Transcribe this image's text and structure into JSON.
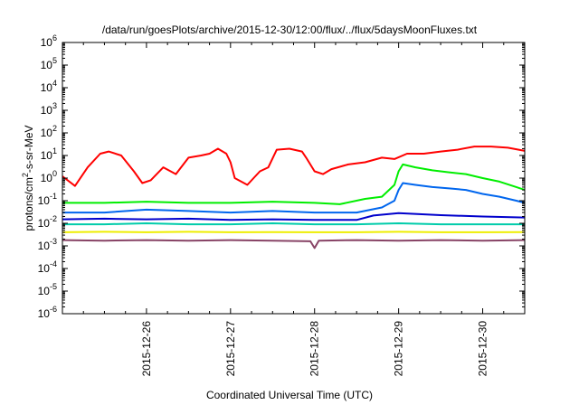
{
  "chart_data": {
    "type": "line",
    "title": "/data/run/goesPlots/archive/2015-12-30/12:00/flux/../flux/5daysMoonFluxes.txt",
    "xlabel": "Coordinated Universal Time (UTC)",
    "ylabel_base": "protons/cm",
    "ylabel_sup": "2",
    "ylabel_rest": "-s-sr-MeV",
    "yscale": "log",
    "ylim_exponents": [
      -6,
      6
    ],
    "ytick_exponents": [
      -6,
      -5,
      -4,
      -3,
      -2,
      -1,
      0,
      1,
      2,
      3,
      4,
      5,
      6
    ],
    "xlim_days": [
      25.0,
      30.5
    ],
    "xticks": [
      {
        "day": 26,
        "label": "2015-12-26"
      },
      {
        "day": 27,
        "label": "2015-12-27"
      },
      {
        "day": 28,
        "label": "2015-12-28"
      },
      {
        "day": 29,
        "label": "2015-12-29"
      },
      {
        "day": 30,
        "label": "2015-12-30"
      }
    ],
    "grid": false,
    "series": [
      {
        "color": "#ff0000",
        "x": [
          25.0,
          25.15,
          25.3,
          25.45,
          25.55,
          25.7,
          25.85,
          25.95,
          26.05,
          26.2,
          26.35,
          26.5,
          26.65,
          26.75,
          26.85,
          26.95,
          27.0,
          27.05,
          27.2,
          27.35,
          27.45,
          27.55,
          27.7,
          27.85,
          27.9,
          28.0,
          28.1,
          28.2,
          28.4,
          28.6,
          28.8,
          28.95,
          29.1,
          29.3,
          29.5,
          29.7,
          29.9,
          30.1,
          30.3,
          30.5
        ],
        "values": [
          1.2,
          0.45,
          3.0,
          12,
          15,
          10,
          2.0,
          0.6,
          0.8,
          3.0,
          1.5,
          8.0,
          10,
          12,
          20,
          12,
          5.0,
          1.0,
          0.5,
          2.0,
          3.0,
          18,
          20,
          15,
          8.0,
          2.0,
          1.5,
          2.5,
          4.0,
          5.0,
          8.0,
          7.0,
          12,
          12,
          15,
          18,
          25,
          25,
          22,
          16
        ]
      },
      {
        "color": "#00ee00",
        "x": [
          25.0,
          25.5,
          26.0,
          26.5,
          27.0,
          27.5,
          28.0,
          28.3,
          28.6,
          28.8,
          28.95,
          29.0,
          29.05,
          29.2,
          29.4,
          29.6,
          29.8,
          30.0,
          30.2,
          30.4,
          30.5
        ],
        "values": [
          0.08,
          0.08,
          0.09,
          0.08,
          0.08,
          0.09,
          0.08,
          0.07,
          0.12,
          0.15,
          0.5,
          2.0,
          4.0,
          3.0,
          2.2,
          1.8,
          1.5,
          1.0,
          0.7,
          0.4,
          0.3
        ]
      },
      {
        "color": "#0066ee",
        "x": [
          25.0,
          25.5,
          26.0,
          26.5,
          27.0,
          27.5,
          28.0,
          28.5,
          28.8,
          28.95,
          29.0,
          29.05,
          29.2,
          29.4,
          29.6,
          29.8,
          30.0,
          30.2,
          30.4,
          30.5
        ],
        "values": [
          0.03,
          0.03,
          0.04,
          0.035,
          0.03,
          0.035,
          0.03,
          0.03,
          0.05,
          0.1,
          0.3,
          0.6,
          0.5,
          0.4,
          0.35,
          0.3,
          0.2,
          0.15,
          0.1,
          0.08
        ]
      },
      {
        "color": "#0000cc",
        "x": [
          25.0,
          25.5,
          26.0,
          26.5,
          27.0,
          27.5,
          28.0,
          28.5,
          28.7,
          29.0,
          29.5,
          30.0,
          30.5
        ],
        "values": [
          0.015,
          0.016,
          0.015,
          0.016,
          0.014,
          0.015,
          0.014,
          0.014,
          0.022,
          0.028,
          0.023,
          0.02,
          0.018
        ]
      },
      {
        "color": "#00ccaa",
        "x": [
          25.0,
          25.5,
          26.0,
          26.5,
          27.0,
          27.5,
          28.0,
          28.5,
          29.0,
          29.5,
          30.0,
          30.5
        ],
        "values": [
          0.009,
          0.009,
          0.01,
          0.009,
          0.009,
          0.01,
          0.009,
          0.009,
          0.01,
          0.009,
          0.009,
          0.009
        ]
      },
      {
        "color": "#eeee00",
        "x": [
          25.0,
          25.5,
          26.0,
          26.5,
          27.0,
          27.5,
          28.0,
          28.5,
          29.0,
          29.5,
          30.0,
          30.5
        ],
        "values": [
          0.004,
          0.0042,
          0.004,
          0.0042,
          0.004,
          0.0041,
          0.004,
          0.004,
          0.0042,
          0.004,
          0.004,
          0.0041
        ]
      },
      {
        "color": "#884466",
        "x": [
          25.0,
          25.5,
          26.0,
          26.5,
          27.0,
          27.5,
          27.95,
          28.0,
          28.05,
          28.5,
          29.0,
          29.5,
          30.0,
          30.5
        ],
        "values": [
          0.0018,
          0.0017,
          0.0018,
          0.0017,
          0.0018,
          0.0017,
          0.0016,
          0.0008,
          0.0017,
          0.0018,
          0.0017,
          0.0018,
          0.0017,
          0.0018
        ]
      }
    ]
  }
}
